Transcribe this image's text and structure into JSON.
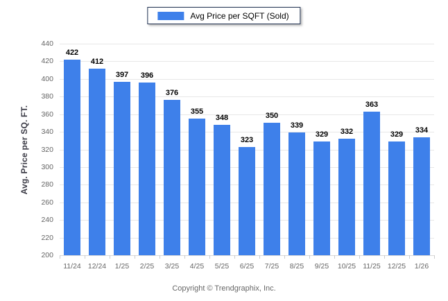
{
  "legend": {
    "label": "Avg Price per SQFT (Sold)"
  },
  "footer": {
    "copyright": "Copyright © Trendgraphix, Inc."
  },
  "colors": {
    "bar": "#3e80ea",
    "grid": "#e7e7e7",
    "baseline": "#d8d8d8",
    "tick": "#cccccc",
    "axis_text": "#646464",
    "value_label": "#000000",
    "legend_border": "#1d2e4f",
    "y_title_text": "#3a3a45",
    "footer_text": "#666666"
  },
  "chart_data": {
    "type": "bar",
    "title": "Avg Price per SQFT (Sold)",
    "xlabel": "",
    "ylabel": "Avg. Price per SQ. FT.",
    "categories": [
      "11/24",
      "12/24",
      "1/25",
      "2/25",
      "3/25",
      "4/25",
      "5/25",
      "6/25",
      "7/25",
      "8/25",
      "9/25",
      "10/25",
      "11/25",
      "12/25",
      "1/26"
    ],
    "series": [
      {
        "name": "Avg Price per SQFT (Sold)",
        "values": [
          422,
          412,
          397,
          396,
          376,
          355,
          348,
          323,
          350,
          339,
          329,
          332,
          363,
          329,
          334
        ]
      }
    ],
    "ylim": [
      200,
      440
    ],
    "ytick_step": 20,
    "grid": "horizontal",
    "legend_position": "top-center",
    "value_labels": true
  }
}
